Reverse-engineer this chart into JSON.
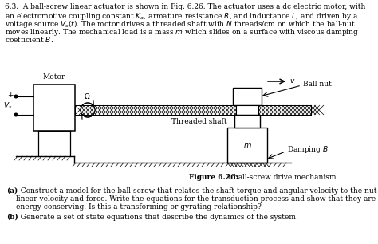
{
  "bg_color": "#ffffff",
  "text_color": "#000000",
  "fig_width": 4.74,
  "fig_height": 3.06,
  "dpi": 100,
  "header_line1": "6.3.  A ball-screw linear actuator is shown in Fig. 6.26. The actuator uses a dc electric motor, with",
  "header_line2": "an electromotive coupling constant $K_a$, armature resistance $R$, and inductance $L$, and driven by a",
  "header_line3": "voltage source $V_s(t)$. The motor drives a threaded shaft with $N$ threads/cm on which the ball-nut",
  "header_line4": "moves linearly. The mechanical load is a mass $m$ which slides on a surface with viscous damping",
  "header_line5": "coefficient $B$.",
  "figure_caption_bold": "Figure 6.26:",
  "figure_caption_normal": "   A ball-screw drive mechanism.",
  "part_a_bold": "(a)",
  "part_a_text1": "  Construct a model for the ball-screw that relates the shaft torque and angular velocity to the nut",
  "part_a_text2": "linear velocity and force. Write the equations for the transduction process and show that they are",
  "part_a_text3": "energy conserving. Is this a transforming or gyrating relationship?",
  "part_b_bold": "(b)",
  "part_b_text": "  Generate a set of state equations that describe the dynamics of the system.",
  "label_motor": "Motor",
  "label_ballnut": "Ball nut",
  "label_threaded": "Threaded shaft",
  "label_damping": "Damping $B$",
  "label_mass": "$m$",
  "label_vs": "$V_s$",
  "label_omega": "$\\Omega$",
  "label_v": "$v$",
  "label_plus": "+",
  "label_minus": "−"
}
